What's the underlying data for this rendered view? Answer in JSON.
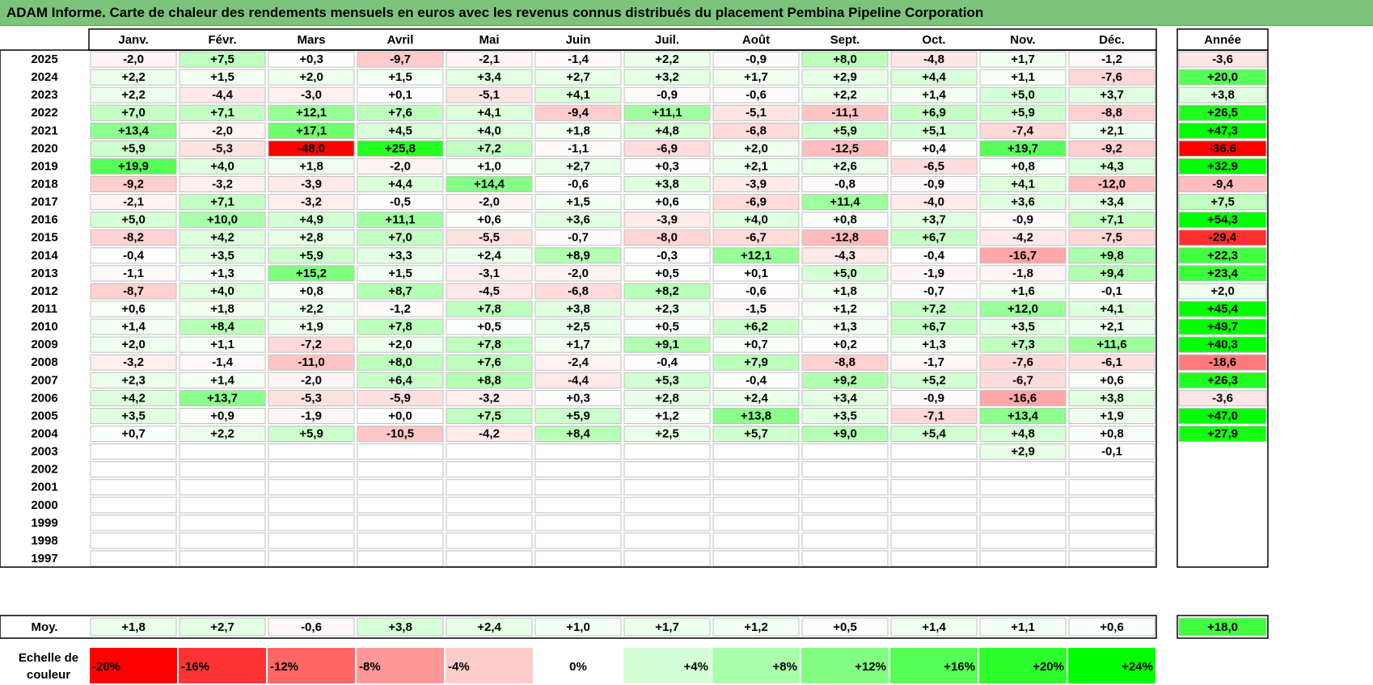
{
  "title": "ADAM Informe. Carte de chaleur des rendements mensuels en euros avec les revenus connus distribués du placement Pembina Pipeline Corporation",
  "chart_data": {
    "type": "heatmap",
    "months": [
      "Janv.",
      "Févr.",
      "Mars",
      "Avril",
      "Mai",
      "Juin",
      "Juil.",
      "Août",
      "Sept.",
      "Oct.",
      "Nov.",
      "Déc."
    ],
    "year_header": "Année",
    "rows": [
      {
        "label": "2025",
        "values": [
          "-2,0",
          "+7,5",
          "+0,3",
          "-9,7",
          "-2,1",
          "-1,4",
          "+2,2",
          "-0,9",
          "+8,0",
          "-4,8",
          "+1,7",
          "-1,2"
        ],
        "year": "-3,6"
      },
      {
        "label": "2024",
        "values": [
          "+2,2",
          "+1,5",
          "+2,0",
          "+1,5",
          "+3,4",
          "+2,7",
          "+3,2",
          "+1,7",
          "+2,9",
          "+4,4",
          "+1,1",
          "-7,6"
        ],
        "year": "+20,0"
      },
      {
        "label": "2023",
        "values": [
          "+2,2",
          "-4,4",
          "-3,0",
          "+0,1",
          "-5,1",
          "+4,1",
          "-0,9",
          "-0,6",
          "+2,2",
          "+1,4",
          "+5,0",
          "+3,7"
        ],
        "year": "+3,8"
      },
      {
        "label": "2022",
        "values": [
          "+7,0",
          "+7,1",
          "+12,1",
          "+7,6",
          "+4,1",
          "-9,4",
          "+11,1",
          "-5,1",
          "-11,1",
          "+6,9",
          "+5,9",
          "-8,8"
        ],
        "year": "+26,5"
      },
      {
        "label": "2021",
        "values": [
          "+13,4",
          "-2,0",
          "+17,1",
          "+4,5",
          "+4,0",
          "+1,8",
          "+4,8",
          "-6,8",
          "+5,9",
          "+5,1",
          "-7,4",
          "+2,1"
        ],
        "year": "+47,3"
      },
      {
        "label": "2020",
        "values": [
          "+5,9",
          "-5,3",
          "-48,0",
          "+25,8",
          "+7,2",
          "-1,1",
          "-6,9",
          "+2,0",
          "-12,5",
          "+0,4",
          "+19,7",
          "-9,2"
        ],
        "year": "-36,6"
      },
      {
        "label": "2019",
        "values": [
          "+19,9",
          "+4,0",
          "+1,8",
          "-2,0",
          "+1,0",
          "+2,7",
          "+0,3",
          "+2,1",
          "+2,6",
          "-6,5",
          "+0,8",
          "+4,3"
        ],
        "year": "+32,9"
      },
      {
        "label": "2018",
        "values": [
          "-9,2",
          "-3,2",
          "-3,9",
          "+4,4",
          "+14,4",
          "-0,6",
          "+3,8",
          "-3,9",
          "-0,8",
          "-0,9",
          "+4,1",
          "-12,0"
        ],
        "year": "-9,4"
      },
      {
        "label": "2017",
        "values": [
          "-2,1",
          "+7,1",
          "-3,2",
          "-0,5",
          "-2,0",
          "+1,5",
          "+0,6",
          "-6,9",
          "+11,4",
          "-4,0",
          "+3,6",
          "+3,4"
        ],
        "year": "+7,5"
      },
      {
        "label": "2016",
        "values": [
          "+5,0",
          "+10,0",
          "+4,9",
          "+11,1",
          "+0,6",
          "+3,6",
          "-3,9",
          "+4,0",
          "+0,8",
          "+3,7",
          "-0,9",
          "+7,1"
        ],
        "year": "+54,3"
      },
      {
        "label": "2015",
        "values": [
          "-8,2",
          "+4,2",
          "+2,8",
          "+7,0",
          "-5,5",
          "-0,7",
          "-8,0",
          "-6,7",
          "-12,8",
          "+6,7",
          "-4,2",
          "-7,5"
        ],
        "year": "-29,4"
      },
      {
        "label": "2014",
        "values": [
          "-0,4",
          "+3,5",
          "+5,9",
          "+3,3",
          "+2,4",
          "+8,9",
          "-0,3",
          "+12,1",
          "-4,3",
          "-0,4",
          "-16,7",
          "+9,8"
        ],
        "year": "+22,3"
      },
      {
        "label": "2013",
        "values": [
          "-1,1",
          "+1,3",
          "+15,2",
          "+1,5",
          "-3,1",
          "-2,0",
          "+0,5",
          "+0,1",
          "+5,0",
          "-1,9",
          "-1,8",
          "+9,4"
        ],
        "year": "+23,4"
      },
      {
        "label": "2012",
        "values": [
          "-8,7",
          "+4,0",
          "+0,8",
          "+8,7",
          "-4,5",
          "-6,8",
          "+8,2",
          "-0,6",
          "+1,8",
          "-0,7",
          "+1,6",
          "-0,1"
        ],
        "year": "+2,0"
      },
      {
        "label": "2011",
        "values": [
          "+0,6",
          "+1,8",
          "+2,2",
          "-1,2",
          "+7,8",
          "+3,8",
          "+2,3",
          "-1,5",
          "+1,2",
          "+7,2",
          "+12,0",
          "+4,1"
        ],
        "year": "+45,4"
      },
      {
        "label": "2010",
        "values": [
          "+1,4",
          "+8,4",
          "+1,9",
          "+7,8",
          "+0,5",
          "+2,5",
          "+0,5",
          "+6,2",
          "+1,3",
          "+6,7",
          "+3,5",
          "+2,1"
        ],
        "year": "+49,7"
      },
      {
        "label": "2009",
        "values": [
          "+2,0",
          "+1,1",
          "-7,2",
          "+2,0",
          "+7,8",
          "+1,7",
          "+9,1",
          "+0,7",
          "+0,2",
          "+1,3",
          "+7,3",
          "+11,6"
        ],
        "year": "+40,3"
      },
      {
        "label": "2008",
        "values": [
          "-3,2",
          "-1,4",
          "-11,0",
          "+8,0",
          "+7,6",
          "-2,4",
          "-0,4",
          "+7,9",
          "-8,8",
          "-1,7",
          "-7,6",
          "-6,1"
        ],
        "year": "-18,6"
      },
      {
        "label": "2007",
        "values": [
          "+2,3",
          "+1,4",
          "-2,0",
          "+6,4",
          "+8,8",
          "-4,4",
          "+5,3",
          "-0,4",
          "+9,2",
          "+5,2",
          "-6,7",
          "+0,6"
        ],
        "year": "+26,3"
      },
      {
        "label": "2006",
        "values": [
          "+4,2",
          "+13,7",
          "-5,3",
          "-5,9",
          "-3,2",
          "+0,3",
          "+2,8",
          "+2,4",
          "+3,4",
          "-0,9",
          "-16,6",
          "+3,8"
        ],
        "year": "-3,6"
      },
      {
        "label": "2005",
        "values": [
          "+3,5",
          "+0,9",
          "-1,9",
          "+0,0",
          "+7,5",
          "+5,9",
          "+1,2",
          "+13,8",
          "+3,5",
          "-7,1",
          "+13,4",
          "+1,9"
        ],
        "year": "+47,0"
      },
      {
        "label": "2004",
        "values": [
          "+0,7",
          "+2,2",
          "+5,9",
          "-10,5",
          "-4,2",
          "+8,4",
          "+2,5",
          "+5,7",
          "+9,0",
          "+5,4",
          "+4,8",
          "+0,8"
        ],
        "year": "+27,9"
      },
      {
        "label": "2003",
        "values": [
          "",
          "",
          "",
          "",
          "",
          "",
          "",
          "",
          "",
          "",
          "+2,9",
          "-0,1"
        ],
        "year": ""
      },
      {
        "label": "2002",
        "values": [
          "",
          "",
          "",
          "",
          "",
          "",
          "",
          "",
          "",
          "",
          "",
          ""
        ],
        "year": ""
      },
      {
        "label": "2001",
        "values": [
          "",
          "",
          "",
          "",
          "",
          "",
          "",
          "",
          "",
          "",
          "",
          ""
        ],
        "year": ""
      },
      {
        "label": "2000",
        "values": [
          "",
          "",
          "",
          "",
          "",
          "",
          "",
          "",
          "",
          "",
          "",
          ""
        ],
        "year": ""
      },
      {
        "label": "1999",
        "values": [
          "",
          "",
          "",
          "",
          "",
          "",
          "",
          "",
          "",
          "",
          "",
          ""
        ],
        "year": ""
      },
      {
        "label": "1998",
        "values": [
          "",
          "",
          "",
          "",
          "",
          "",
          "",
          "",
          "",
          "",
          "",
          ""
        ],
        "year": ""
      },
      {
        "label": "1997",
        "values": [
          "",
          "",
          "",
          "",
          "",
          "",
          "",
          "",
          "",
          "",
          "",
          ""
        ],
        "year": ""
      }
    ],
    "average": {
      "label": "Moy.",
      "values": [
        "+1,8",
        "+2,7",
        "-0,6",
        "+3,8",
        "+2,4",
        "+1,0",
        "+1,7",
        "+1,2",
        "+0,5",
        "+1,4",
        "+1,1",
        "+0,6"
      ],
      "year": "+18,0"
    },
    "scale": {
      "label_line1": "Echelle de",
      "label_line2": "couleur",
      "stops": [
        "-20%",
        "-16%",
        "-12%",
        "-8%",
        "-4%",
        "0%",
        "+4%",
        "+8%",
        "+12%",
        "+16%",
        "+20%",
        "+24%"
      ]
    },
    "colors": {
      "negative_max": "#ff0000",
      "neutral": "#ffffff",
      "positive_max": "#00ff00",
      "title_bg": "#7cc47c",
      "grid": "#bfbfbf"
    }
  }
}
